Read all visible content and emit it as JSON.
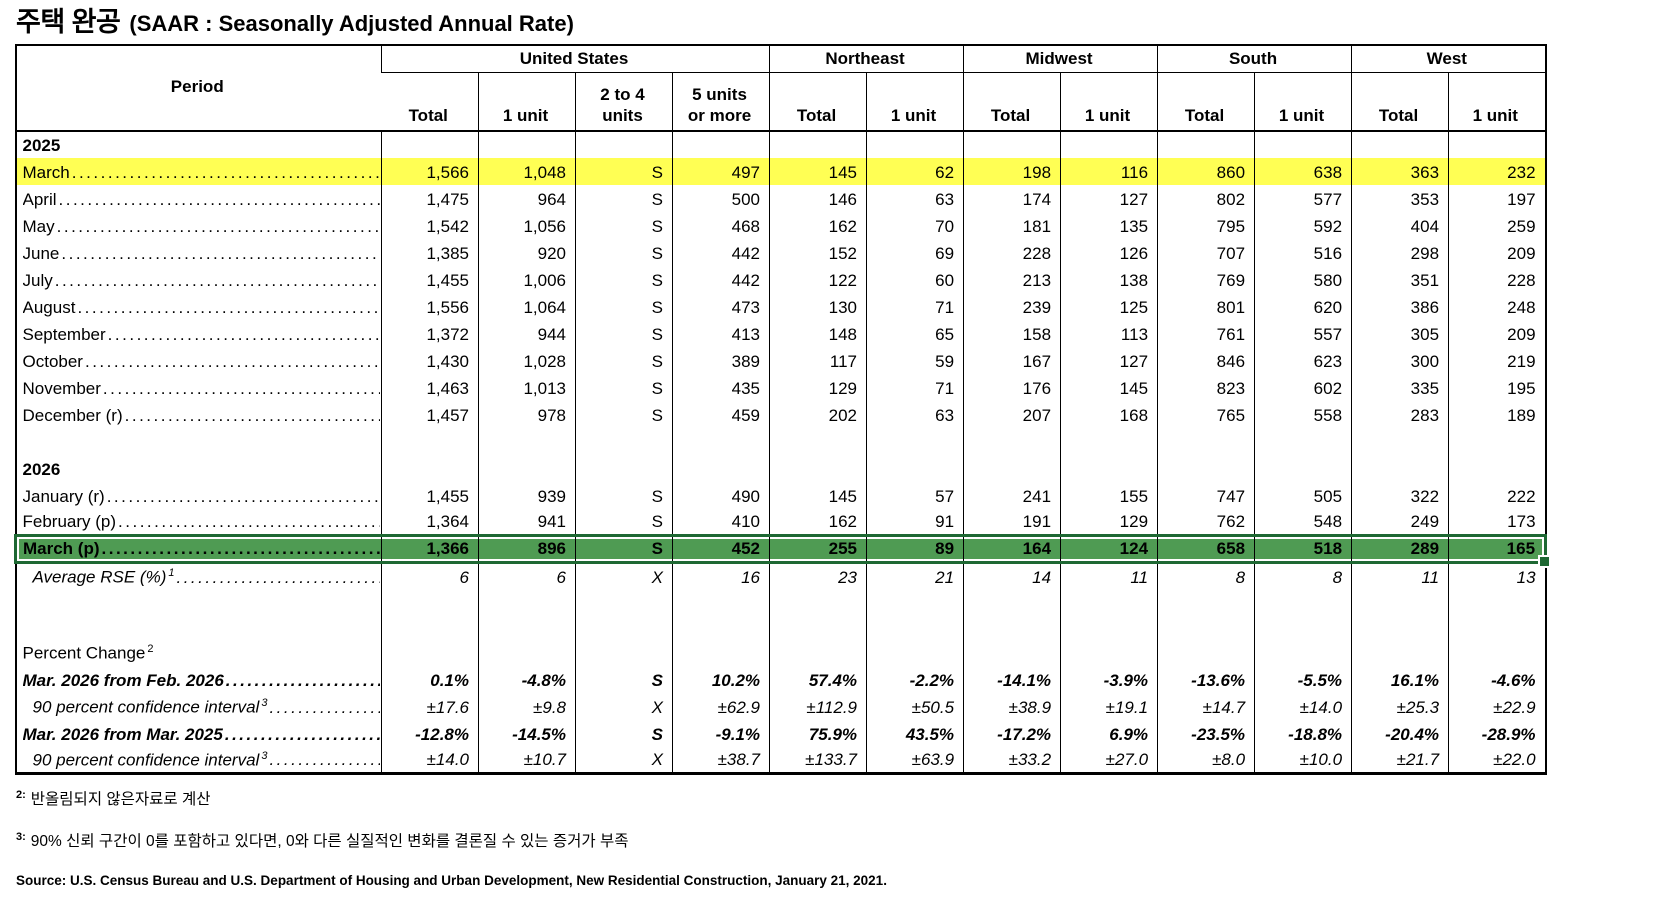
{
  "title": {
    "korean": "주택 완공",
    "english": "(SAAR : Seasonally Adjusted Annual Rate)"
  },
  "table": {
    "period_header": "Period",
    "region_groups": [
      {
        "label": "United States",
        "columns": [
          {
            "top": "",
            "bottom": "Total"
          },
          {
            "top": "",
            "bottom": "1 unit"
          },
          {
            "top": "2 to 4",
            "bottom": "units"
          },
          {
            "top": "5 units",
            "bottom": "or more"
          }
        ]
      },
      {
        "label": "Northeast",
        "columns": [
          {
            "top": "",
            "bottom": "Total"
          },
          {
            "top": "",
            "bottom": "1 unit"
          }
        ]
      },
      {
        "label": "Midwest",
        "columns": [
          {
            "top": "",
            "bottom": "Total"
          },
          {
            "top": "",
            "bottom": "1 unit"
          }
        ]
      },
      {
        "label": "South",
        "columns": [
          {
            "top": "",
            "bottom": "Total"
          },
          {
            "top": "",
            "bottom": "1 unit"
          }
        ]
      },
      {
        "label": "West",
        "columns": [
          {
            "top": "",
            "bottom": "Total"
          },
          {
            "top": "",
            "bottom": "1 unit"
          }
        ]
      }
    ],
    "rows": [
      {
        "type": "section",
        "label": "2025"
      },
      {
        "type": "data",
        "label": "March",
        "highlight": "yellow",
        "values": [
          "1,566",
          "1,048",
          "S",
          "497",
          "145",
          "62",
          "198",
          "116",
          "860",
          "638",
          "363",
          "232"
        ]
      },
      {
        "type": "data",
        "label": "April",
        "values": [
          "1,475",
          "964",
          "S",
          "500",
          "146",
          "63",
          "174",
          "127",
          "802",
          "577",
          "353",
          "197"
        ]
      },
      {
        "type": "data",
        "label": "May",
        "values": [
          "1,542",
          "1,056",
          "S",
          "468",
          "162",
          "70",
          "181",
          "135",
          "795",
          "592",
          "404",
          "259"
        ]
      },
      {
        "type": "data",
        "label": "June",
        "values": [
          "1,385",
          "920",
          "S",
          "442",
          "152",
          "69",
          "228",
          "126",
          "707",
          "516",
          "298",
          "209"
        ]
      },
      {
        "type": "data",
        "label": "July",
        "values": [
          "1,455",
          "1,006",
          "S",
          "442",
          "122",
          "60",
          "213",
          "138",
          "769",
          "580",
          "351",
          "228"
        ]
      },
      {
        "type": "data",
        "label": "August",
        "values": [
          "1,556",
          "1,064",
          "S",
          "473",
          "130",
          "71",
          "239",
          "125",
          "801",
          "620",
          "386",
          "248"
        ]
      },
      {
        "type": "data",
        "label": "September",
        "values": [
          "1,372",
          "944",
          "S",
          "413",
          "148",
          "65",
          "158",
          "113",
          "761",
          "557",
          "305",
          "209"
        ]
      },
      {
        "type": "data",
        "label": "October",
        "values": [
          "1,430",
          "1,028",
          "S",
          "389",
          "117",
          "59",
          "167",
          "127",
          "846",
          "623",
          "300",
          "219"
        ]
      },
      {
        "type": "data",
        "label": "November",
        "values": [
          "1,463",
          "1,013",
          "S",
          "435",
          "129",
          "71",
          "176",
          "145",
          "823",
          "602",
          "335",
          "195"
        ]
      },
      {
        "type": "data",
        "label": "December (r)",
        "values": [
          "1,457",
          "978",
          "S",
          "459",
          "202",
          "63",
          "207",
          "168",
          "765",
          "558",
          "283",
          "189"
        ]
      },
      {
        "type": "spacer"
      },
      {
        "type": "section",
        "label": "2026"
      },
      {
        "type": "data",
        "label": "January (r)",
        "values": [
          "1,455",
          "939",
          "S",
          "490",
          "145",
          "57",
          "241",
          "155",
          "747",
          "505",
          "322",
          "222"
        ]
      },
      {
        "type": "data",
        "label": "February (p)",
        "values": [
          "1,364",
          "941",
          "S",
          "410",
          "162",
          "91",
          "191",
          "129",
          "762",
          "548",
          "249",
          "173"
        ]
      },
      {
        "type": "data",
        "label": "March (p)",
        "highlight": "green",
        "style": "bold",
        "values": [
          "1,366",
          "896",
          "S",
          "452",
          "255",
          "89",
          "164",
          "124",
          "658",
          "518",
          "289",
          "165"
        ]
      },
      {
        "type": "data",
        "label": "Average RSE (%)",
        "sup": "1",
        "style": "italic",
        "indent": true,
        "values": [
          "6",
          "6",
          "X",
          "16",
          "23",
          "21",
          "14",
          "11",
          "8",
          "8",
          "11",
          "13"
        ]
      },
      {
        "type": "spacer",
        "tall": true
      },
      {
        "type": "label",
        "label": "Percent Change",
        "sup": "2"
      },
      {
        "type": "data",
        "label": "Mar. 2026 from Feb. 2026",
        "style": "bolditalic",
        "values": [
          "0.1%",
          "-4.8%",
          "S",
          "10.2%",
          "57.4%",
          "-2.2%",
          "-14.1%",
          "-3.9%",
          "-13.6%",
          "-5.5%",
          "16.1%",
          "-4.6%"
        ]
      },
      {
        "type": "data",
        "label": "90 percent confidence interval",
        "sup": "3",
        "style": "italic",
        "indent": true,
        "values": [
          "±17.6",
          "±9.8",
          "X",
          "±62.9",
          "±112.9",
          "±50.5",
          "±38.9",
          "±19.1",
          "±14.7",
          "±14.0",
          "±25.3",
          "±22.9"
        ]
      },
      {
        "type": "data",
        "label": "Mar. 2026 from Mar. 2025",
        "style": "bolditalic",
        "values": [
          "-12.8%",
          "-14.5%",
          "S",
          "-9.1%",
          "75.9%",
          "43.5%",
          "-17.2%",
          "6.9%",
          "-23.5%",
          "-18.8%",
          "-20.4%",
          "-28.9%"
        ]
      },
      {
        "type": "data",
        "label": "90 percent confidence interval",
        "sup": "3",
        "style": "italic",
        "indent": true,
        "values": [
          "±14.0",
          "±10.7",
          "X",
          "±38.7",
          "±133.7",
          "±63.9",
          "±33.2",
          "±27.0",
          "±8.0",
          "±10.0",
          "±21.7",
          "±22.0"
        ]
      }
    ]
  },
  "footnotes": [
    {
      "marker": "2:",
      "text": "반올림되지 않은자료로 계산"
    },
    {
      "marker": "3:",
      "text": "90% 신뢰 구간이 0를 포함하고 있다면, 0와 다른 실질적인 변화를 결론질 수 있는 증거가 부족"
    }
  ],
  "source": "Source: U.S. Census Bureau and U.S. Department of Housing and Urban Development, New Residential Construction, January 21, 2021.",
  "colors": {
    "yellow_highlight": "#FFFF54",
    "green_highlight": "#4F9B53",
    "green_border": "#1E6833"
  }
}
